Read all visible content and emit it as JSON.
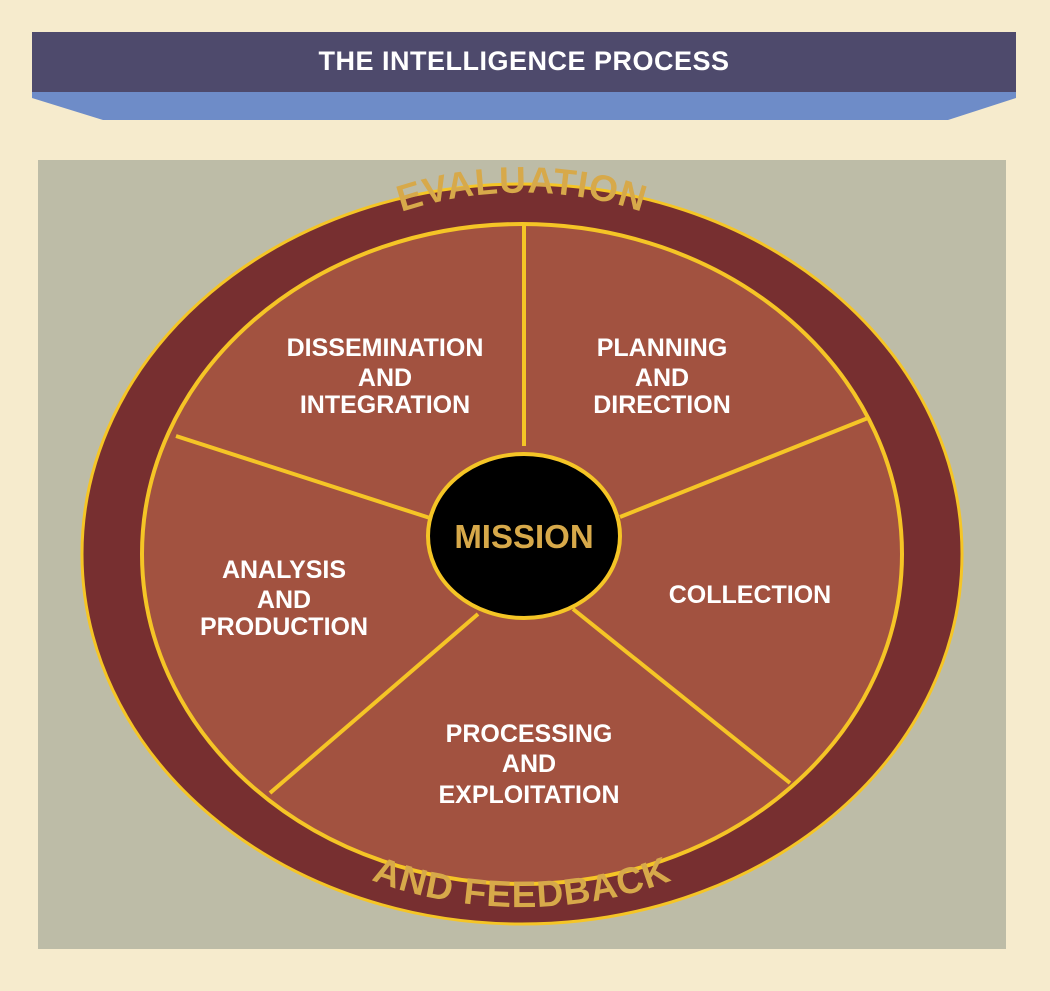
{
  "header": {
    "title": "THE INTELLIGENCE PROCESS"
  },
  "diagram": {
    "outer_ring": {
      "top_text": "EVALUATION",
      "bottom_text": "AND FEEDBACK"
    },
    "center": {
      "label": "MISSION"
    },
    "segments": [
      {
        "id": "dissemination",
        "lines": [
          "DISSEMINATION",
          "AND",
          "INTEGRATION"
        ]
      },
      {
        "id": "planning",
        "lines": [
          "PLANNING",
          "AND",
          "DIRECTION"
        ]
      },
      {
        "id": "collection",
        "lines": [
          "COLLECTION"
        ]
      },
      {
        "id": "processing",
        "lines": [
          "PROCESSING",
          "AND",
          "EXPLOITATION"
        ]
      },
      {
        "id": "analysis",
        "lines": [
          "ANALYSIS",
          "AND",
          "PRODUCTION"
        ]
      }
    ],
    "colors": {
      "page_background": "#f6ebcd",
      "banner_top": "#4e4a6c",
      "banner_bottom": "#6e8cc8",
      "panel_background": "#bdbca7",
      "outer_ring": "#772f30",
      "segments": "#a25240",
      "gold_lines": "#f5c526",
      "center_fill": "#000000",
      "ring_text": "#d7a94a"
    }
  }
}
